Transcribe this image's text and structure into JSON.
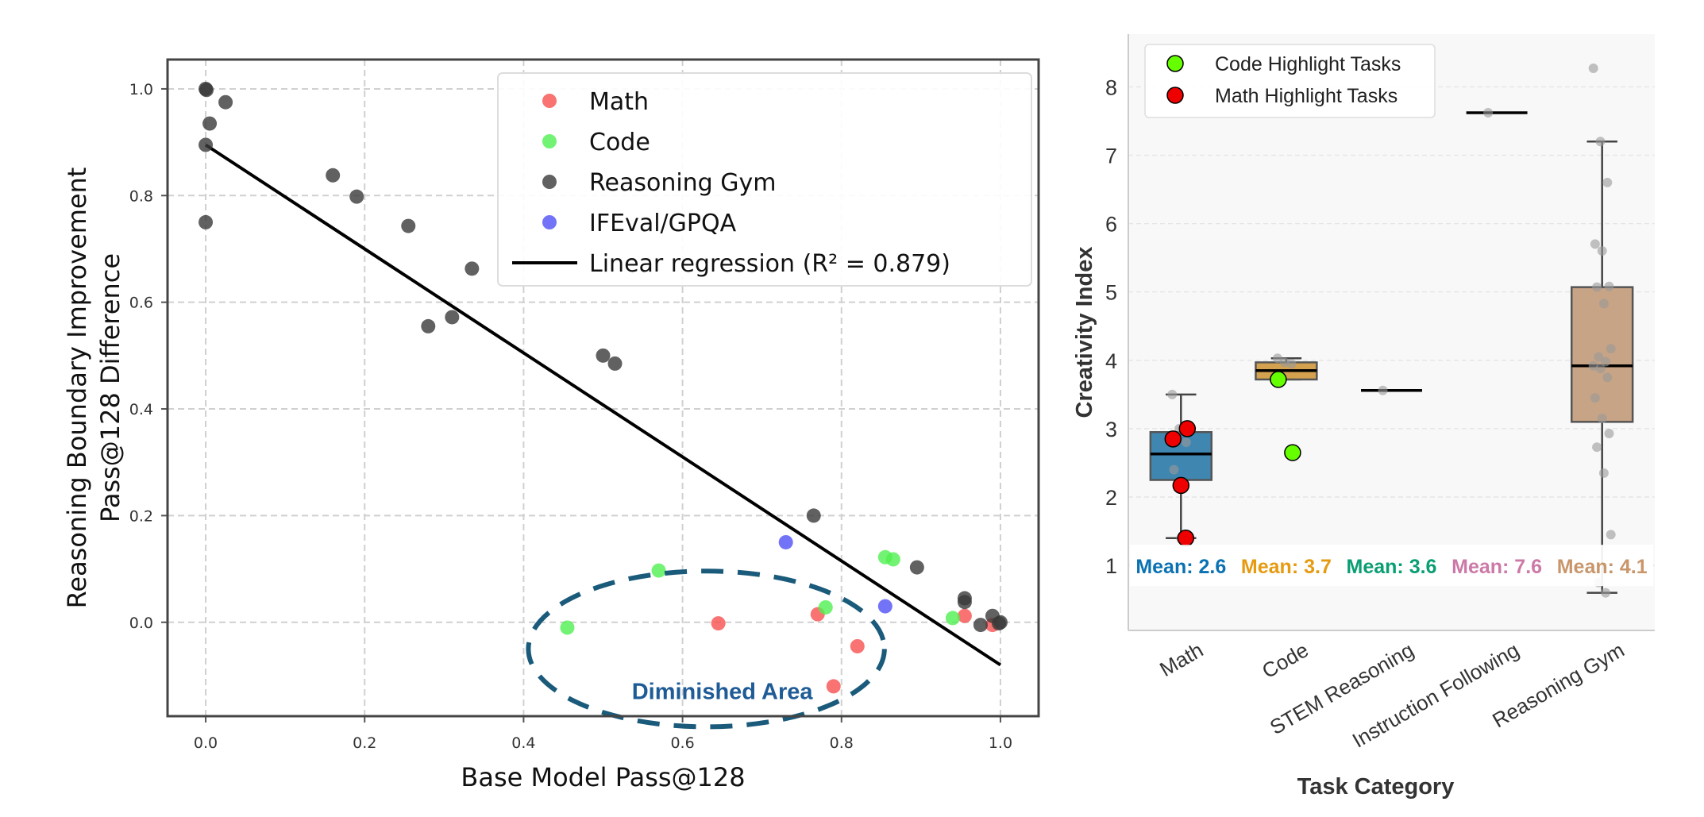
{
  "chart_data": [
    {
      "type": "scatter",
      "xlabel": "Base Model Pass@128",
      "ylabel_lines": [
        "Reasoning Boundary Improvement",
        "Pass@128 Difference"
      ],
      "xlim": [
        -0.048,
        1.048
      ],
      "ylim": [
        -0.176,
        1.055
      ],
      "xticks": [
        "0.0",
        "0.2",
        "0.4",
        "0.6",
        "0.8",
        "1.0"
      ],
      "yticks": [
        "0.0",
        "0.2",
        "0.4",
        "0.6",
        "0.8",
        "1.0"
      ],
      "grid": true,
      "legend_position": "top-right",
      "series": [
        {
          "name": "Math",
          "color": "#f85050",
          "points": [
            [
              0.645,
              -0.002
            ],
            [
              0.77,
              0.015
            ],
            [
              0.79,
              -0.12
            ],
            [
              0.82,
              -0.045
            ],
            [
              0.955,
              0.012
            ],
            [
              0.99,
              -0.005
            ]
          ]
        },
        {
          "name": "Code",
          "color": "#50f050",
          "points": [
            [
              0.455,
              -0.01
            ],
            [
              0.57,
              0.097
            ],
            [
              0.78,
              0.028
            ],
            [
              0.855,
              0.122
            ],
            [
              0.865,
              0.118
            ],
            [
              0.94,
              0.008
            ]
          ]
        },
        {
          "name": "Reasoning Gym",
          "color": "#3a3a3a",
          "points": [
            [
              0,
              1.0
            ],
            [
              0.001,
              0.998
            ],
            [
              0.005,
              0.935
            ],
            [
              0.025,
              0.975
            ],
            [
              0,
              0.895
            ],
            [
              0,
              0.75
            ],
            [
              0.16,
              0.838
            ],
            [
              0.19,
              0.798
            ],
            [
              0.255,
              0.743
            ],
            [
              0.28,
              0.555
            ],
            [
              0.31,
              0.572
            ],
            [
              0.335,
              0.663
            ],
            [
              0.5,
              0.5
            ],
            [
              0.515,
              0.485
            ],
            [
              0.765,
              0.2
            ],
            [
              0.895,
              0.103
            ],
            [
              0.955,
              0.045
            ],
            [
              0.955,
              0.038
            ],
            [
              0.975,
              -0.005
            ],
            [
              0.99,
              0.012
            ],
            [
              1.0,
              0.0
            ],
            [
              0.998,
              -0.002
            ]
          ]
        },
        {
          "name": "IFEval/GPQA",
          "color": "#5050f5",
          "points": [
            [
              0.73,
              0.15
            ],
            [
              0.855,
              0.03
            ]
          ]
        }
      ],
      "regression": {
        "name": "Linear regression (R² = 0.879)",
        "color": "#000000",
        "x": [
          0,
          1.0
        ],
        "y": [
          0.895,
          -0.08
        ]
      },
      "annotation": {
        "text": "Diminished Area",
        "color": "#1a5a7a",
        "center": [
          0.63,
          -0.05
        ],
        "radius": [
          0.224,
          0.146
        ]
      }
    },
    {
      "type": "box",
      "xlabel": "Task Category",
      "ylabel": "Creativity Index",
      "ylim": [
        0.05,
        8.77
      ],
      "yticks": [
        "1",
        "2",
        "3",
        "4",
        "5",
        "6",
        "7",
        "8"
      ],
      "grid": true,
      "legend_position": "top-left",
      "legend": [
        {
          "name": "Code Highlight Tasks",
          "color": "#66ff00"
        },
        {
          "name": "Math Highlight Tasks",
          "color": "#ee0000"
        }
      ],
      "categories": [
        "Math",
        "Code",
        "STEM Reasoning",
        "Instruction Following",
        "Reasoning Gym"
      ],
      "boxes": [
        {
          "q1": 2.25,
          "median": 2.63,
          "q3": 2.95,
          "whisker_low": 1.4,
          "whisker_high": 3.5,
          "color": "#3f86b0"
        },
        {
          "q1": 3.72,
          "median": 3.85,
          "q3": 3.97,
          "whisker_low": 3.72,
          "whisker_high": 4.03,
          "color": "#d4a14f"
        },
        {
          "q1": 3.56,
          "median": 3.56,
          "q3": 3.56,
          "whisker_low": 3.56,
          "whisker_high": 3.56,
          "color": "#0a9e73"
        },
        {
          "q1": 7.62,
          "median": 7.62,
          "q3": 7.62,
          "whisker_low": 7.62,
          "whisker_high": 7.62,
          "color": "#cc79a7"
        },
        {
          "q1": 3.1,
          "median": 3.92,
          "q3": 5.07,
          "whisker_low": 0.6,
          "whisker_high": 7.2,
          "color": "#c8a486"
        }
      ],
      "points": [
        [
          3.5,
          3.0,
          2.8,
          2.4,
          1.4
        ],
        [
          4.03,
          3.97,
          3.95,
          3.7
        ],
        [
          3.56
        ],
        [
          7.62
        ],
        [
          8.27,
          7.2,
          6.6,
          5.7,
          5.6,
          5.08,
          5.07,
          4.83,
          4.17,
          4.05,
          3.98,
          3.92,
          3.88,
          3.75,
          3.45,
          3.15,
          2.93,
          2.73,
          2.35,
          1.45,
          0.75,
          0.6
        ]
      ],
      "highlight_points": [
        {
          "category": 0,
          "values": [
            2.85,
            3.0,
            2.17,
            1.4
          ],
          "color": "#ee0000"
        },
        {
          "category": 1,
          "values": [
            3.72,
            2.65
          ],
          "color": "#66ff00"
        }
      ],
      "mean_labels": [
        {
          "text": "Mean: 2.6",
          "color": "#0a72b2"
        },
        {
          "text": "Mean: 3.7",
          "color": "#e69a10"
        },
        {
          "text": "Mean: 3.6",
          "color": "#0a9e73"
        },
        {
          "text": "Mean: 7.6",
          "color": "#cc79a7"
        },
        {
          "text": "Mean: 4.1",
          "color": "#c8966a"
        }
      ]
    }
  ]
}
